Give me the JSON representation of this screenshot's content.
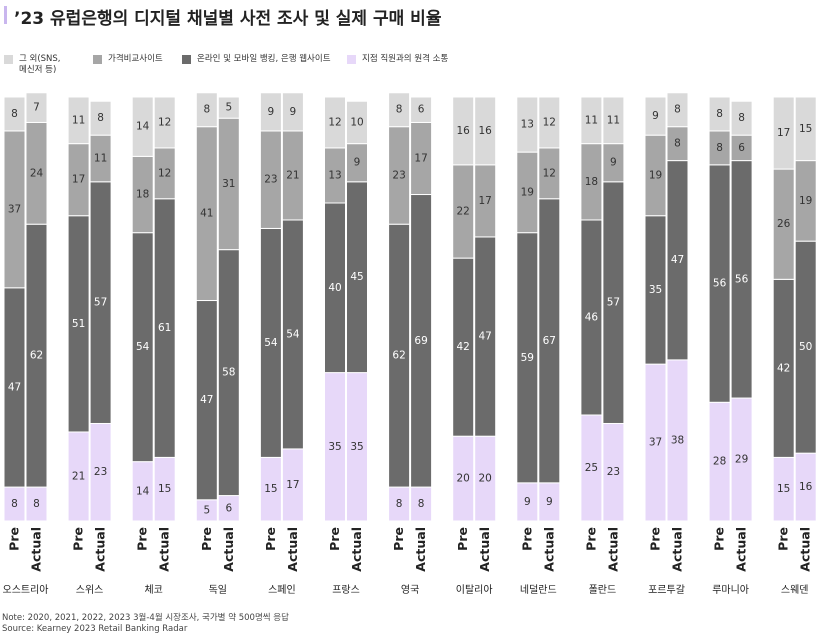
{
  "title": "’23 유럽은행의 디지털 채널별 사전 조사 및 실제 구매 비율",
  "colors": {
    "title_bar": "#c9b6ee",
    "text_on_light": "#333333",
    "text_on_dark": "#ffffff"
  },
  "legend": [
    {
      "label": "그 외(SNS,\n메신저 등)",
      "color": "#d9d9d9"
    },
    {
      "label": "가격비교사이트",
      "color": "#a6a6a6"
    },
    {
      "label": "온라인 및 모바일 뱅킹, 은행 웹사이트",
      "color": "#6b6b6b"
    },
    {
      "label": "지점 직원과의 원격 소통",
      "color": "#e7d8f9"
    }
  ],
  "chart_data": {
    "type": "bar",
    "stacked": true,
    "normalized": true,
    "categories": [
      "오스트리아",
      "스위스",
      "체코",
      "독일",
      "스페인",
      "프랑스",
      "영국",
      "이탈리아",
      "네덜란드",
      "폴란드",
      "포르투갈",
      "루마니아",
      "스웨덴"
    ],
    "bar_labels": [
      "Pre",
      "Actual"
    ],
    "series": [
      {
        "name": "지점 직원과의 원격 소통",
        "color": "#e7d8f9",
        "pre": [
          8,
          21,
          14,
          5,
          15,
          35,
          8,
          20,
          9,
          25,
          37,
          28,
          15
        ],
        "actual": [
          8,
          23,
          15,
          6,
          17,
          35,
          8,
          20,
          9,
          23,
          38,
          29,
          16
        ]
      },
      {
        "name": "온라인 및 모바일 뱅킹, 은행 웹사이트",
        "color": "#6b6b6b",
        "pre": [
          47,
          51,
          54,
          47,
          54,
          40,
          62,
          42,
          59,
          46,
          35,
          56,
          42
        ],
        "actual": [
          62,
          57,
          61,
          58,
          54,
          45,
          69,
          47,
          67,
          57,
          47,
          56,
          50
        ]
      },
      {
        "name": "가격비교사이트",
        "color": "#a6a6a6",
        "pre": [
          37,
          17,
          18,
          41,
          23,
          13,
          23,
          22,
          19,
          18,
          19,
          8,
          26
        ],
        "actual": [
          24,
          11,
          12,
          31,
          21,
          9,
          17,
          17,
          12,
          9,
          8,
          6,
          19
        ]
      },
      {
        "name": "그 외(SNS, 메신저 등)",
        "color": "#d9d9d9",
        "pre": [
          8,
          11,
          14,
          8,
          9,
          12,
          8,
          16,
          13,
          11,
          9,
          8,
          17
        ],
        "actual": [
          7,
          8,
          12,
          5,
          9,
          10,
          6,
          16,
          12,
          11,
          8,
          8,
          15
        ]
      }
    ]
  },
  "notes": {
    "note": "Note: 2020, 2021, 2022, 2023 3월-4월 시장조사, 국가별 약 500명씩 응답",
    "source": "Source: Kearney 2023 Retail Banking Radar"
  }
}
